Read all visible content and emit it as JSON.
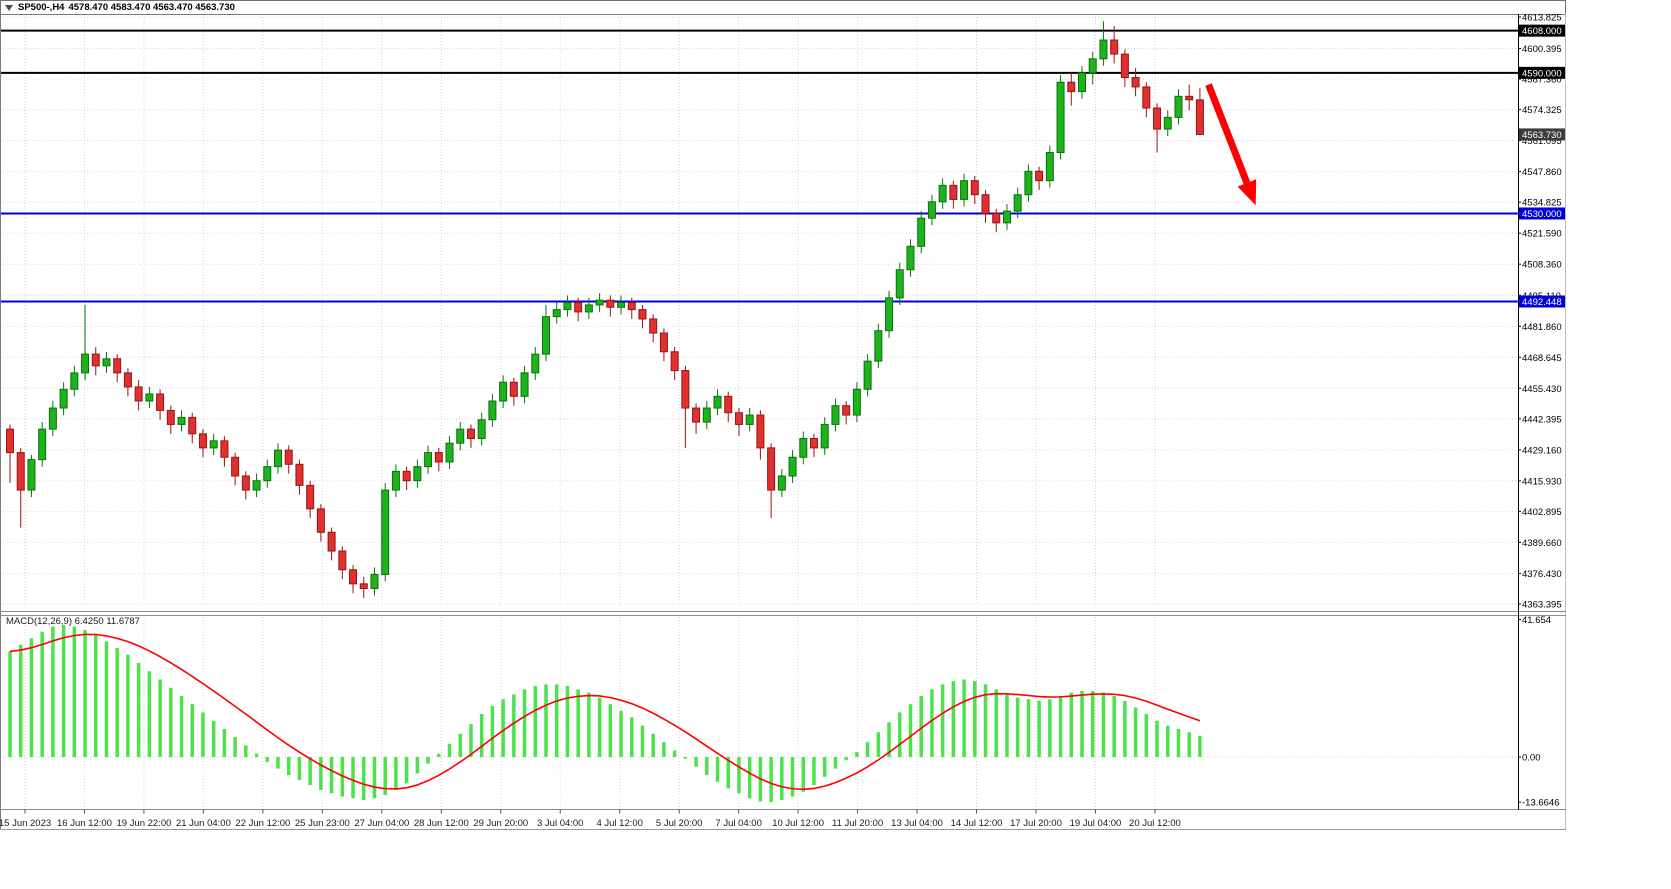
{
  "titlebar": {
    "symbol": "SP500-,H4",
    "ohlc": "4578.470 4583.470 4563.470 4563.730"
  },
  "chart_data": {
    "type": "candlestick",
    "symbol": "SP500-",
    "timeframe": "H4",
    "colors": {
      "grid": "#d6d6d6",
      "up_fill": "#1cb31c",
      "up_stroke": "#0b720b",
      "down_fill": "#e03030",
      "down_stroke": "#971414",
      "macd_hist": "#4ce24c",
      "macd_signal": "#ff0000",
      "level_black": "#000000",
      "level_blue": "#0000dd",
      "current_price_bg": "#3c3c3c"
    },
    "y_axis": {
      "min": 4363.395,
      "max": 4613.825,
      "tick_labels": [
        "4613.825",
        "4600.395",
        "4587.360",
        "4574.325",
        "4561.095",
        "4547.860",
        "4534.825",
        "4521.590",
        "4508.360",
        "4495.110",
        "4481.860",
        "4468.645",
        "4455.430",
        "4442.395",
        "4429.160",
        "4415.930",
        "4402.895",
        "4389.660",
        "4376.430",
        "4363.395"
      ],
      "highlight_labels": [
        {
          "text": "4608.000",
          "price": 4608.0,
          "bg": "#000000"
        },
        {
          "text": "4590.000",
          "price": 4590.0,
          "bg": "#000000"
        },
        {
          "text": "4563.730",
          "price": 4563.73,
          "bg": "#3c3c3c"
        },
        {
          "text": "4530.000",
          "price": 4530.0,
          "bg": "#0000dd"
        },
        {
          "text": "4492.448",
          "price": 4492.448,
          "bg": "#0000dd"
        }
      ]
    },
    "x_axis": {
      "tick_labels": [
        "15 Jun 2023",
        "16 Jun 12:00",
        "19 Jun 22:00",
        "21 Jun 04:00",
        "22 Jun 12:00",
        "25 Jun 23:00",
        "27 Jun 04:00",
        "28 Jun 12:00",
        "29 Jun 20:00",
        "3 Jul 04:00",
        "4 Jul 12:00",
        "5 Jul 20:00",
        "7 Jul 04:00",
        "10 Jul 12:00",
        "11 Jul 20:00",
        "13 Jul 04:00",
        "14 Jul 12:00",
        "17 Jul 20:00",
        "19 Jul 04:00",
        "20 Jul 12:00"
      ]
    },
    "horizontal_lines": [
      {
        "price": 4608.0,
        "color": "#000000",
        "width": 2,
        "label": "4608.000"
      },
      {
        "price": 4590.0,
        "color": "#000000",
        "width": 2,
        "label": "4590.000"
      },
      {
        "price": 4530.0,
        "color": "#0000dd",
        "width": 2,
        "label": "4530.000"
      },
      {
        "price": 4492.448,
        "color": "#0000dd",
        "width": 2,
        "label": "4492.448"
      }
    ],
    "current_price": 4563.73,
    "candles": [
      [
        4438,
        4440,
        4415,
        4428
      ],
      [
        4428,
        4430,
        4396,
        4412
      ],
      [
        4412,
        4427,
        4409,
        4425
      ],
      [
        4425,
        4441,
        4422,
        4438
      ],
      [
        4438,
        4450,
        4435,
        4447
      ],
      [
        4447,
        4458,
        4444,
        4455
      ],
      [
        4455,
        4465,
        4452,
        4462
      ],
      [
        4462,
        4491,
        4459,
        4470
      ],
      [
        4470,
        4473,
        4461,
        4465
      ],
      [
        4465,
        4471,
        4462,
        4468
      ],
      [
        4468,
        4470,
        4458,
        4462
      ],
      [
        4462,
        4464,
        4452,
        4456
      ],
      [
        4456,
        4459,
        4446,
        4450
      ],
      [
        4450,
        4456,
        4447,
        4453
      ],
      [
        4453,
        4455,
        4442,
        4446
      ],
      [
        4446,
        4448,
        4436,
        4440
      ],
      [
        4440,
        4446,
        4437,
        4443
      ],
      [
        4443,
        4445,
        4432,
        4436
      ],
      [
        4436,
        4438,
        4426,
        4430
      ],
      [
        4430,
        4436,
        4427,
        4433
      ],
      [
        4433,
        4435,
        4422,
        4426
      ],
      [
        4426,
        4428,
        4414,
        4418
      ],
      [
        4418,
        4420,
        4408,
        4412
      ],
      [
        4412,
        4419,
        4409,
        4416
      ],
      [
        4416,
        4425,
        4413,
        4422
      ],
      [
        4422,
        4432,
        4419,
        4429
      ],
      [
        4429,
        4431,
        4419,
        4423
      ],
      [
        4423,
        4425,
        4410,
        4414
      ],
      [
        4414,
        4416,
        4400,
        4404
      ],
      [
        4404,
        4406,
        4390,
        4394
      ],
      [
        4394,
        4396,
        4382,
        4386
      ],
      [
        4386,
        4388,
        4374,
        4378
      ],
      [
        4378,
        4380,
        4368,
        4372
      ],
      [
        4372,
        4375,
        4366,
        4370
      ],
      [
        4370,
        4379,
        4367,
        4376
      ],
      [
        4376,
        4415,
        4373,
        4412
      ],
      [
        4412,
        4423,
        4409,
        4420
      ],
      [
        4420,
        4422,
        4412,
        4416
      ],
      [
        4416,
        4425,
        4413,
        4422
      ],
      [
        4422,
        4431,
        4419,
        4428
      ],
      [
        4428,
        4430,
        4420,
        4424
      ],
      [
        4424,
        4435,
        4421,
        4432
      ],
      [
        4432,
        4441,
        4429,
        4438
      ],
      [
        4438,
        4440,
        4430,
        4434
      ],
      [
        4434,
        4445,
        4431,
        4442
      ],
      [
        4442,
        4453,
        4439,
        4450
      ],
      [
        4450,
        4461,
        4447,
        4458
      ],
      [
        4458,
        4460,
        4448,
        4452
      ],
      [
        4452,
        4465,
        4449,
        4462
      ],
      [
        4462,
        4473,
        4459,
        4470
      ],
      [
        4470,
        4491,
        4467,
        4486
      ],
      [
        4486,
        4492,
        4483,
        4489
      ],
      [
        4489,
        4495,
        4486,
        4492
      ],
      [
        4492,
        4494,
        4484,
        4488
      ],
      [
        4488,
        4494,
        4485,
        4491
      ],
      [
        4491,
        4496,
        4488,
        4493
      ],
      [
        4493,
        4495,
        4486,
        4490
      ],
      [
        4490,
        4495,
        4487,
        4492
      ],
      [
        4492,
        4494,
        4485,
        4489
      ],
      [
        4489,
        4491,
        4481,
        4485
      ],
      [
        4485,
        4487,
        4475,
        4479
      ],
      [
        4479,
        4481,
        4467,
        4471
      ],
      [
        4471,
        4473,
        4459,
        4463
      ],
      [
        4463,
        4465,
        4430,
        4447
      ],
      [
        4447,
        4449,
        4436,
        4441
      ],
      [
        4441,
        4450,
        4438,
        4447
      ],
      [
        4447,
        4455,
        4444,
        4452
      ],
      [
        4452,
        4454,
        4441,
        4445
      ],
      [
        4445,
        4447,
        4435,
        4440
      ],
      [
        4440,
        4447,
        4437,
        4444
      ],
      [
        4444,
        4446,
        4425,
        4430
      ],
      [
        4430,
        4432,
        4400,
        4412
      ],
      [
        4412,
        4421,
        4409,
        4418
      ],
      [
        4418,
        4429,
        4415,
        4426
      ],
      [
        4426,
        4437,
        4423,
        4434
      ],
      [
        4434,
        4436,
        4426,
        4430
      ],
      [
        4430,
        4443,
        4427,
        4440
      ],
      [
        4440,
        4451,
        4437,
        4448
      ],
      [
        4448,
        4450,
        4440,
        4444
      ],
      [
        4444,
        4458,
        4441,
        4455
      ],
      [
        4455,
        4470,
        4452,
        4467
      ],
      [
        4467,
        4483,
        4464,
        4480
      ],
      [
        4480,
        4497,
        4477,
        4494
      ],
      [
        4494,
        4509,
        4491,
        4506
      ],
      [
        4506,
        4519,
        4503,
        4516
      ],
      [
        4516,
        4531,
        4513,
        4528
      ],
      [
        4528,
        4538,
        4525,
        4535
      ],
      [
        4535,
        4545,
        4532,
        4542
      ],
      [
        4542,
        4544,
        4532,
        4536
      ],
      [
        4536,
        4547,
        4533,
        4544
      ],
      [
        4544,
        4546,
        4534,
        4538
      ],
      [
        4538,
        4540,
        4526,
        4530
      ],
      [
        4530,
        4532,
        4522,
        4526
      ],
      [
        4526,
        4534,
        4523,
        4531
      ],
      [
        4531,
        4541,
        4528,
        4538
      ],
      [
        4538,
        4551,
        4535,
        4548
      ],
      [
        4548,
        4550,
        4540,
        4544
      ],
      [
        4544,
        4559,
        4541,
        4556
      ],
      [
        4556,
        4589,
        4553,
        4586
      ],
      [
        4586,
        4590,
        4576,
        4582
      ],
      [
        4582,
        4593,
        4579,
        4590
      ],
      [
        4590,
        4599,
        4585,
        4596
      ],
      [
        4596,
        4612,
        4593,
        4604
      ],
      [
        4604,
        4610,
        4594,
        4598
      ],
      [
        4598,
        4600,
        4584,
        4588
      ],
      [
        4588,
        4592,
        4580,
        4584
      ],
      [
        4584,
        4586,
        4571,
        4575
      ],
      [
        4575,
        4577,
        4556,
        4566
      ],
      [
        4566,
        4574,
        4563,
        4571
      ],
      [
        4571,
        4583,
        4568,
        4580
      ],
      [
        4580,
        4585,
        4574,
        4578.5
      ],
      [
        4578.47,
        4583.47,
        4563.47,
        4563.73
      ]
    ],
    "macd": {
      "label": "MACD(12,26,9) 6.4250 11.6787",
      "params": "12,26,9",
      "macd_value": 6.425,
      "signal_value": 11.6787,
      "axis_tick_labels": [
        "41.654",
        "0.00",
        "-13.6646"
      ],
      "ylim": [
        -13.6646,
        41.654
      ],
      "histogram": [
        32,
        34,
        36,
        38,
        39.5,
        40,
        39.5,
        38.5,
        37,
        35,
        33,
        31,
        28.5,
        26,
        23.5,
        21,
        18.5,
        16,
        13.5,
        11,
        8.5,
        6,
        3.5,
        1,
        -1.5,
        -3.5,
        -5.5,
        -7,
        -8.5,
        -10,
        -11,
        -12,
        -12.5,
        -13,
        -12.5,
        -11.5,
        -10,
        -8,
        -5,
        -2,
        1,
        4,
        7,
        10,
        13,
        15.5,
        17.5,
        19,
        20.5,
        21.5,
        22,
        22,
        21.5,
        20.5,
        19.5,
        18,
        16,
        14,
        12,
        9.5,
        7,
        4.5,
        2,
        -0.5,
        -3,
        -5.5,
        -7.5,
        -9.5,
        -11,
        -12.5,
        -13.5,
        -13.66,
        -13,
        -12,
        -10.5,
        -8.5,
        -6,
        -3.5,
        -1,
        1.5,
        4.5,
        7.5,
        10.5,
        13.5,
        16,
        18.5,
        20.5,
        22,
        23,
        23.5,
        23,
        22,
        20.5,
        19,
        18,
        17.5,
        17,
        17.5,
        18.5,
        19.5,
        20,
        20,
        19.5,
        18.5,
        17,
        15,
        13,
        11,
        9.5,
        8.5,
        7.5,
        6.425
      ]
    },
    "annotations": [
      {
        "type": "arrow",
        "color": "#ff0000",
        "width": 7,
        "from": {
          "candle": 111.8,
          "price": 4585.0
        },
        "to": {
          "candle": 116.2,
          "price": 4533.5
        }
      }
    ]
  }
}
